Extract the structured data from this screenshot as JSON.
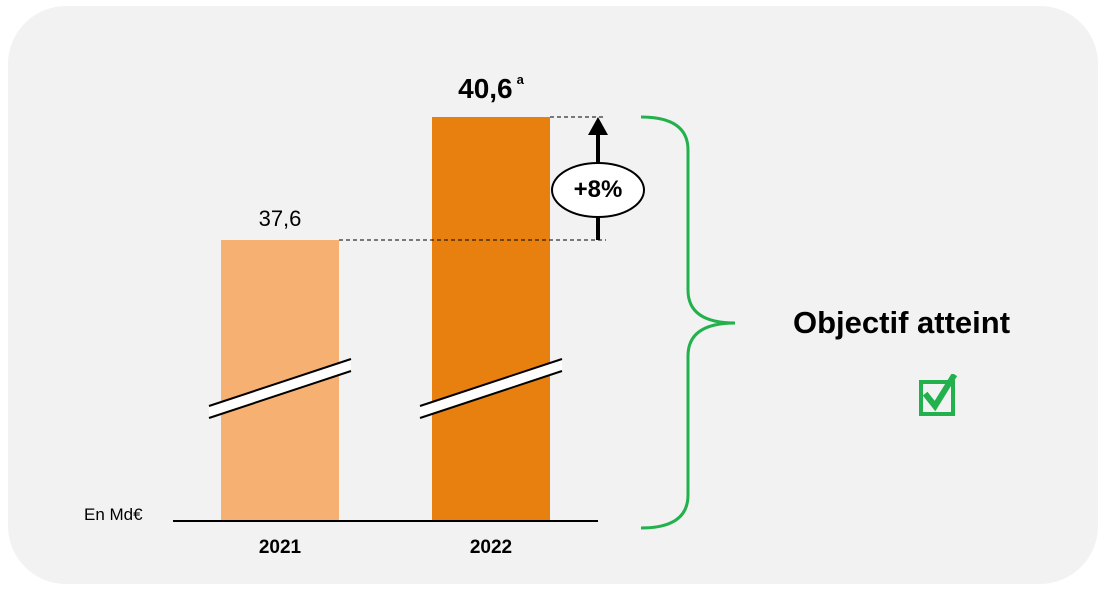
{
  "chart_data": {
    "type": "bar",
    "unit_label": "En Md€",
    "categories": [
      "2021",
      "2022"
    ],
    "values": [
      37.6,
      40.6
    ],
    "value_labels": [
      "37,6",
      "40,6"
    ],
    "value_footnote": "a",
    "change_label": "+8%",
    "axis_break": true,
    "colors": [
      "#f6b172",
      "#e8800f"
    ]
  },
  "annotation": {
    "title": "Objectif atteint",
    "icon": "checked-box-icon",
    "color": "#22b14c"
  }
}
